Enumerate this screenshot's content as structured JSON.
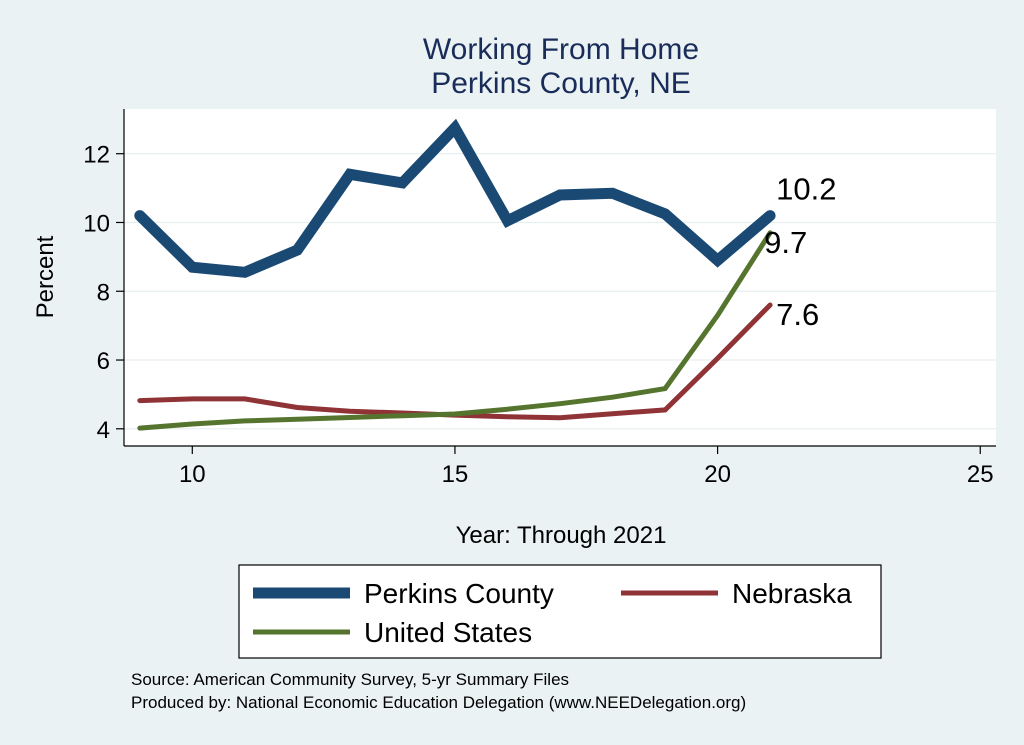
{
  "chart_data": {
    "type": "line",
    "title": [
      "Working From Home",
      "Perkins County, NE"
    ],
    "xlabel": "Year: Through 2021",
    "ylabel": "Percent",
    "xlim": [
      8.7,
      25.3
    ],
    "ylim": [
      3.5,
      13.3
    ],
    "xticks": [
      10,
      15,
      20,
      25
    ],
    "yticks": [
      4,
      6,
      8,
      10,
      12
    ],
    "grid": true,
    "legend_position": "bottom",
    "x": [
      9,
      10,
      11,
      12,
      13,
      14,
      15,
      16,
      17,
      18,
      19,
      20,
      21
    ],
    "series": [
      {
        "name": "Perkins County",
        "color": "#1a4a74",
        "values": [
          10.2,
          8.7,
          8.55,
          9.2,
          11.4,
          11.15,
          12.75,
          10.05,
          10.8,
          10.85,
          10.25,
          8.9,
          10.2
        ],
        "end_label": "10.2"
      },
      {
        "name": "Nebraska",
        "color": "#903337",
        "values": [
          4.82,
          4.87,
          4.87,
          4.62,
          4.51,
          4.46,
          4.4,
          4.35,
          4.32,
          4.44,
          4.55,
          6.05,
          7.6
        ],
        "end_label": "7.6"
      },
      {
        "name": "United States",
        "color": "#55752f",
        "values": [
          4.02,
          4.14,
          4.23,
          4.28,
          4.33,
          4.38,
          4.43,
          4.57,
          4.73,
          4.92,
          5.17,
          7.3,
          9.7
        ],
        "end_label": "9.7"
      }
    ]
  },
  "notes": [
    "Source: American Community Survey, 5-yr Summary Files",
    "Produced by: National Economic Education Delegation (www.NEEDelegation.org)"
  ]
}
